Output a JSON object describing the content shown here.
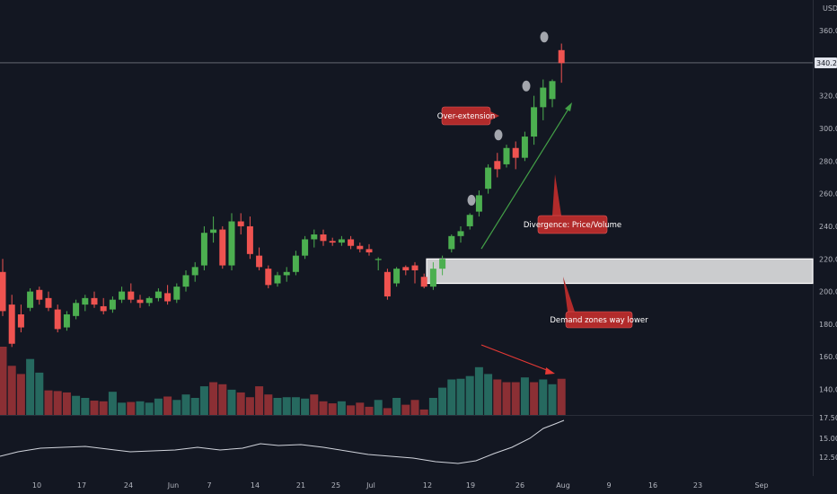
{
  "chart_data": {
    "type": "candlestick",
    "currency": "USD",
    "last_price": "340.21",
    "y_ticks": [
      "140.00",
      "160.00",
      "180.00",
      "200.00",
      "220.00",
      "240.00",
      "260.00",
      "280.00",
      "300.00",
      "320.00",
      "340.00",
      "360.00"
    ],
    "x_ticks": [
      "10",
      "17",
      "24",
      "Jun",
      "7",
      "14",
      "21",
      "25",
      "Jul",
      "12",
      "19",
      "26",
      "Aug",
      "9",
      "16",
      "23",
      "Sep"
    ],
    "indicator_ticks": [
      "17.50",
      "15.00",
      "12.50"
    ],
    "x_labels_order": "daily candles from early May to the start of August",
    "candles": [
      [
        212,
        220,
        185,
        188
      ],
      [
        192,
        198,
        166,
        168
      ],
      [
        186,
        192,
        175,
        178
      ],
      [
        190,
        202,
        188,
        200
      ],
      [
        201,
        203,
        192,
        195
      ],
      [
        196,
        200,
        188,
        190
      ],
      [
        189,
        192,
        175,
        177
      ],
      [
        178,
        188,
        176,
        186
      ],
      [
        185,
        195,
        183,
        193
      ],
      [
        192,
        198,
        188,
        196
      ],
      [
        196,
        200,
        190,
        192
      ],
      [
        191,
        196,
        186,
        188
      ],
      [
        189,
        197,
        187,
        195
      ],
      [
        195,
        203,
        193,
        200
      ],
      [
        200,
        205,
        193,
        195
      ],
      [
        195,
        198,
        190,
        193
      ],
      [
        193,
        197,
        191,
        196
      ],
      [
        196,
        202,
        194,
        200
      ],
      [
        199,
        204,
        192,
        194
      ],
      [
        195,
        205,
        193,
        203
      ],
      [
        203,
        213,
        200,
        210
      ],
      [
        210,
        218,
        206,
        215
      ],
      [
        216,
        240,
        213,
        236
      ],
      [
        236,
        246,
        230,
        238
      ],
      [
        238,
        240,
        214,
        216
      ],
      [
        216,
        248,
        213,
        243
      ],
      [
        243,
        248,
        235,
        240
      ],
      [
        240,
        246,
        220,
        223
      ],
      [
        222,
        227,
        213,
        215
      ],
      [
        214,
        216,
        202,
        204
      ],
      [
        205,
        212,
        203,
        210
      ],
      [
        210,
        215,
        206,
        212
      ],
      [
        212,
        225,
        210,
        222
      ],
      [
        222,
        234,
        220,
        232
      ],
      [
        232,
        238,
        227,
        235
      ],
      [
        235,
        238,
        228,
        231
      ],
      [
        231,
        233,
        228,
        230
      ],
      [
        230,
        234,
        228,
        232
      ],
      [
        232,
        234,
        226,
        228
      ],
      [
        228,
        230,
        224,
        226
      ],
      [
        226,
        229,
        222,
        224
      ],
      [
        220,
        221,
        213,
        220
      ],
      [
        212,
        214,
        195,
        197
      ],
      [
        205,
        215,
        203,
        214
      ],
      [
        215,
        216,
        210,
        213
      ],
      [
        216,
        218,
        205,
        213
      ],
      [
        209,
        211,
        202,
        203
      ],
      [
        203,
        218,
        201,
        214
      ],
      [
        214,
        222,
        210,
        220
      ],
      [
        226,
        235,
        224,
        234
      ],
      [
        234,
        240,
        230,
        237
      ],
      [
        240,
        248,
        238,
        247
      ],
      [
        249,
        262,
        246,
        259
      ],
      [
        263,
        278,
        260,
        276
      ],
      [
        280,
        285,
        270,
        275
      ],
      [
        278,
        290,
        276,
        288
      ],
      [
        288,
        292,
        275,
        282
      ],
      [
        282,
        298,
        280,
        295
      ],
      [
        295,
        320,
        290,
        313
      ],
      [
        313,
        330,
        305,
        325
      ],
      [
        318,
        330,
        313,
        329
      ],
      [
        348,
        352,
        328,
        340
      ]
    ],
    "volume": [
      {
        "v": 100,
        "up": false
      },
      {
        "v": 72,
        "up": false
      },
      {
        "v": 60,
        "up": false
      },
      {
        "v": 82,
        "up": true
      },
      {
        "v": 62,
        "up": true
      },
      {
        "v": 36,
        "up": false
      },
      {
        "v": 35,
        "up": false
      },
      {
        "v": 33,
        "up": false
      },
      {
        "v": 28,
        "up": true
      },
      {
        "v": 25,
        "up": true
      },
      {
        "v": 21,
        "up": false
      },
      {
        "v": 20,
        "up": false
      },
      {
        "v": 34,
        "up": true
      },
      {
        "v": 18,
        "up": true
      },
      {
        "v": 19,
        "up": false
      },
      {
        "v": 20,
        "up": true
      },
      {
        "v": 18,
        "up": true
      },
      {
        "v": 24,
        "up": true
      },
      {
        "v": 27,
        "up": false
      },
      {
        "v": 22,
        "up": true
      },
      {
        "v": 30,
        "up": true
      },
      {
        "v": 25,
        "up": true
      },
      {
        "v": 42,
        "up": true
      },
      {
        "v": 48,
        "up": false
      },
      {
        "v": 45,
        "up": false
      },
      {
        "v": 37,
        "up": true
      },
      {
        "v": 33,
        "up": false
      },
      {
        "v": 26,
        "up": false
      },
      {
        "v": 42,
        "up": false
      },
      {
        "v": 30,
        "up": false
      },
      {
        "v": 25,
        "up": true
      },
      {
        "v": 26,
        "up": true
      },
      {
        "v": 26,
        "up": true
      },
      {
        "v": 24,
        "up": true
      },
      {
        "v": 30,
        "up": false
      },
      {
        "v": 20,
        "up": false
      },
      {
        "v": 17,
        "up": false
      },
      {
        "v": 20,
        "up": true
      },
      {
        "v": 14,
        "up": false
      },
      {
        "v": 18,
        "up": false
      },
      {
        "v": 12,
        "up": false
      },
      {
        "v": 22,
        "up": true
      },
      {
        "v": 10,
        "up": false
      },
      {
        "v": 25,
        "up": true
      },
      {
        "v": 15,
        "up": false
      },
      {
        "v": 22,
        "up": false
      },
      {
        "v": 8,
        "up": false
      },
      {
        "v": 25,
        "up": true
      },
      {
        "v": 40,
        "up": true
      },
      {
        "v": 52,
        "up": true
      },
      {
        "v": 53,
        "up": true
      },
      {
        "v": 57,
        "up": true
      },
      {
        "v": 70,
        "up": true
      },
      {
        "v": 60,
        "up": true
      },
      {
        "v": 52,
        "up": false
      },
      {
        "v": 48,
        "up": false
      },
      {
        "v": 48,
        "up": false
      },
      {
        "v": 55,
        "up": true
      },
      {
        "v": 48,
        "up": false
      },
      {
        "v": 52,
        "up": true
      },
      {
        "v": 45,
        "up": true
      },
      {
        "v": 53,
        "up": false
      }
    ],
    "demand_zone": {
      "top": 220,
      "bottom": 205,
      "label": "Demand zones way lower"
    },
    "annotations": [
      {
        "id": "over_extension",
        "text": "Over-extension"
      },
      {
        "id": "divergence",
        "text": "Divergence: Price/Volume"
      },
      {
        "id": "demand",
        "text": "Demand zones way lower"
      }
    ],
    "markers": [
      256,
      296,
      326,
      356
    ],
    "colors": {
      "bg": "#131722",
      "up": "#4caf50",
      "down": "#ef5350",
      "vol_up": "#26695f",
      "vol_down": "#8b2f34",
      "axis_text": "#b2b5be",
      "note_bg": "#b22b2b",
      "arrow_green": "#43a047",
      "arrow_red": "#e53935"
    }
  }
}
